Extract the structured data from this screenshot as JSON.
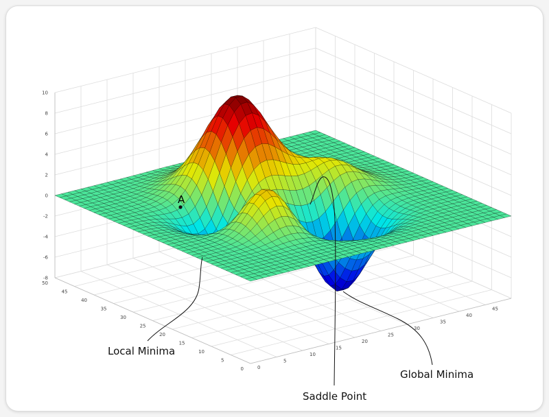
{
  "annotations": [
    "Local Minima",
    "Saddle Point",
    "Global Minima"
  ],
  "point_label": "A",
  "z_ticks": [
    10,
    8,
    6,
    4,
    2,
    0,
    -2,
    -4,
    -6,
    -8
  ],
  "y_ticks": [
    50,
    45,
    40,
    35,
    30,
    25,
    20,
    15,
    10,
    5,
    0
  ],
  "x_ticks": [
    0,
    5,
    10,
    15,
    20,
    25,
    30,
    35,
    40,
    45
  ]
}
